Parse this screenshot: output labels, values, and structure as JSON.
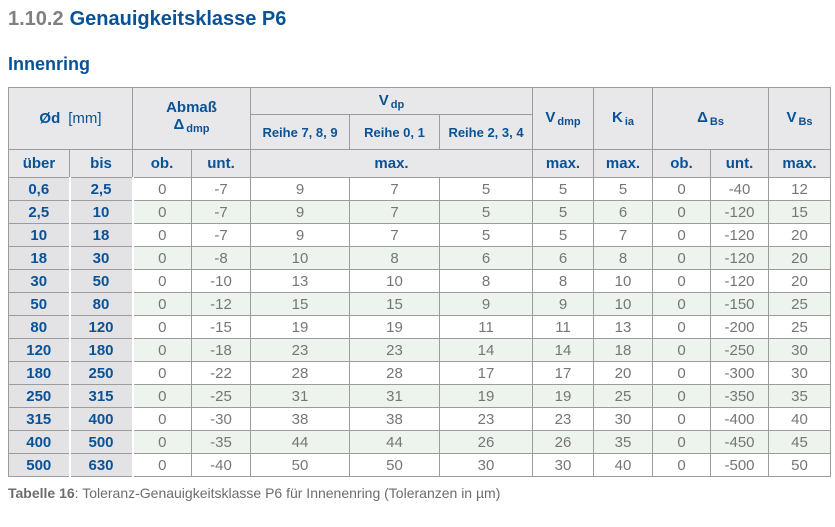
{
  "page": {
    "section_number": "1.10.2",
    "section_title": "Genauigkeitsklasse P6",
    "subtitle": "Innenring"
  },
  "table": {
    "header": {
      "od_symbol": "Ød",
      "od_unit": "[mm]",
      "abmass_title": "Abmaß",
      "abmass_symbol": "Δ",
      "abmass_sub": "dmp",
      "vdp_symbol": "V",
      "vdp_sub": "dp",
      "reihe_789": "Reihe 7, 8, 9",
      "reihe_01": "Reihe 0, 1",
      "reihe_234": "Reihe 2, 3, 4",
      "vdmp_symbol": "V",
      "vdmp_sub": "dmp",
      "kia_symbol": "K",
      "kia_sub": "ia",
      "dbs_symbol": "Δ",
      "dbs_sub": "Bs",
      "vbs_symbol": "V",
      "vbs_sub": "Bs"
    },
    "subheader": {
      "ueber": "über",
      "bis": "bis",
      "ob": "ob.",
      "unt": "unt.",
      "max": "max."
    },
    "rows": [
      [
        "0,6",
        "2,5",
        "0",
        "-7",
        "9",
        "7",
        "5",
        "5",
        "5",
        "0",
        "-40",
        "12"
      ],
      [
        "2,5",
        "10",
        "0",
        "-7",
        "9",
        "7",
        "5",
        "5",
        "6",
        "0",
        "-120",
        "15"
      ],
      [
        "10",
        "18",
        "0",
        "-7",
        "9",
        "7",
        "5",
        "5",
        "7",
        "0",
        "-120",
        "20"
      ],
      [
        "18",
        "30",
        "0",
        "-8",
        "10",
        "8",
        "6",
        "6",
        "8",
        "0",
        "-120",
        "20"
      ],
      [
        "30",
        "50",
        "0",
        "-10",
        "13",
        "10",
        "8",
        "8",
        "10",
        "0",
        "-120",
        "20"
      ],
      [
        "50",
        "80",
        "0",
        "-12",
        "15",
        "15",
        "9",
        "9",
        "10",
        "0",
        "-150",
        "25"
      ],
      [
        "80",
        "120",
        "0",
        "-15",
        "19",
        "19",
        "11",
        "11",
        "13",
        "0",
        "-200",
        "25"
      ],
      [
        "120",
        "180",
        "0",
        "-18",
        "23",
        "23",
        "14",
        "14",
        "18",
        "0",
        "-250",
        "30"
      ],
      [
        "180",
        "250",
        "0",
        "-22",
        "28",
        "28",
        "17",
        "17",
        "20",
        "0",
        "-300",
        "30"
      ],
      [
        "250",
        "315",
        "0",
        "-25",
        "31",
        "31",
        "19",
        "19",
        "25",
        "0",
        "-350",
        "35"
      ],
      [
        "315",
        "400",
        "0",
        "-30",
        "38",
        "38",
        "23",
        "23",
        "30",
        "0",
        "-400",
        "40"
      ],
      [
        "400",
        "500",
        "0",
        "-35",
        "44",
        "44",
        "26",
        "26",
        "35",
        "0",
        "-450",
        "45"
      ],
      [
        "500",
        "630",
        "0",
        "-40",
        "50",
        "50",
        "30",
        "30",
        "40",
        "0",
        "-500",
        "50"
      ]
    ]
  },
  "caption": {
    "label": "Tabelle 16",
    "rest": ": Toleranz-Genauigkeitsklasse P6 für Innenenring (Toleranzen in µm)"
  },
  "colors": {
    "brand_blue": "#0a5296",
    "title_number_gray": "#808080",
    "data_text_gray": "#767676",
    "border_gray": "#9c9c9c",
    "header_bg": "#e8e8ea",
    "label_col_bg": "#e3e3e5",
    "row_green": "#edf3ed"
  }
}
